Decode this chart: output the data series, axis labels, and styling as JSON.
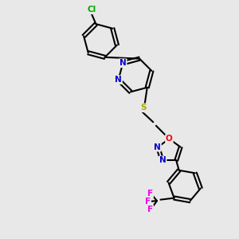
{
  "background_color": "#e8e8e8",
  "bond_color": "#000000",
  "atom_colors": {
    "N": "#0000cc",
    "O": "#ff0000",
    "S": "#aaaa00",
    "Cl": "#00aa00",
    "F": "#ee00ee"
  },
  "figsize": [
    3.0,
    3.0
  ],
  "dpi": 100
}
